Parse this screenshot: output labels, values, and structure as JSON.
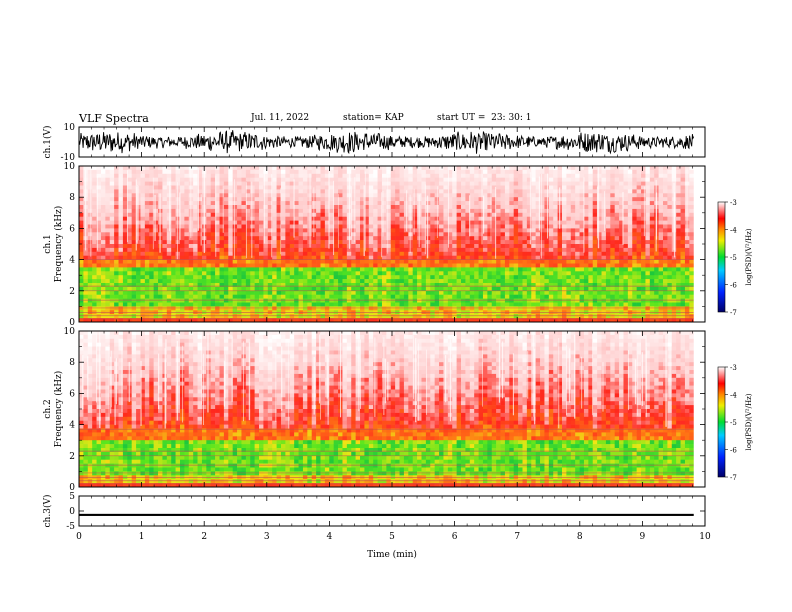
{
  "header": {
    "title": "VLF Spectra",
    "date": "Jul. 11, 2022",
    "station": "station= KAP",
    "start": "start UT =  23: 30: 1"
  },
  "chart_data": [
    {
      "type": "line",
      "panel": "ch1-waveform",
      "ylabel": "ch.1(V)",
      "ylim": [
        -10,
        10
      ],
      "yticks": [
        "10",
        "-10"
      ],
      "description_values": {
        "approx_range": [
          -8,
          8
        ]
      }
    },
    {
      "type": "heatmap",
      "panel": "ch1-spectrogram",
      "ylabel": "ch.1\nFrequency (kHz)",
      "ylim": [
        0,
        10
      ],
      "yticks": [
        "0",
        "2",
        "4",
        "6",
        "8",
        "10"
      ],
      "strong_band_khz": [
        1.0,
        3.5
      ],
      "noise_edge_khz": 4.0,
      "colorbar": {
        "label": "log(PSD)(V²/Hz)",
        "ticks": [
          "-3",
          "-4",
          "-5",
          "-6",
          "-7"
        ],
        "range": [
          -7,
          -3
        ]
      }
    },
    {
      "type": "heatmap",
      "panel": "ch2-spectrogram",
      "ylabel": "ch.2\nFrequency (kHz)",
      "ylim": [
        0,
        10
      ],
      "yticks": [
        "0",
        "2",
        "4",
        "6",
        "8",
        "10"
      ],
      "strong_band_khz": [
        0.8,
        3.0
      ],
      "noise_edge_khz": 3.7,
      "colorbar": {
        "label": "log(PSD)(V²/Hz)",
        "ticks": [
          "-3",
          "-4",
          "-5",
          "-6",
          "-7"
        ],
        "range": [
          -7,
          -3
        ]
      }
    },
    {
      "type": "line",
      "panel": "ch3-waveform",
      "ylabel": "ch.3(V)",
      "ylim": [
        -5,
        5
      ],
      "yticks": [
        "5",
        "0",
        "-5"
      ],
      "approx_level": -1.3
    }
  ],
  "xaxis": {
    "label": "Time (min)",
    "xlim": [
      0,
      10
    ],
    "ticks": [
      "0",
      "1",
      "2",
      "3",
      "4",
      "5",
      "6",
      "7",
      "8",
      "9",
      "10"
    ],
    "data_end": 9.82
  }
}
